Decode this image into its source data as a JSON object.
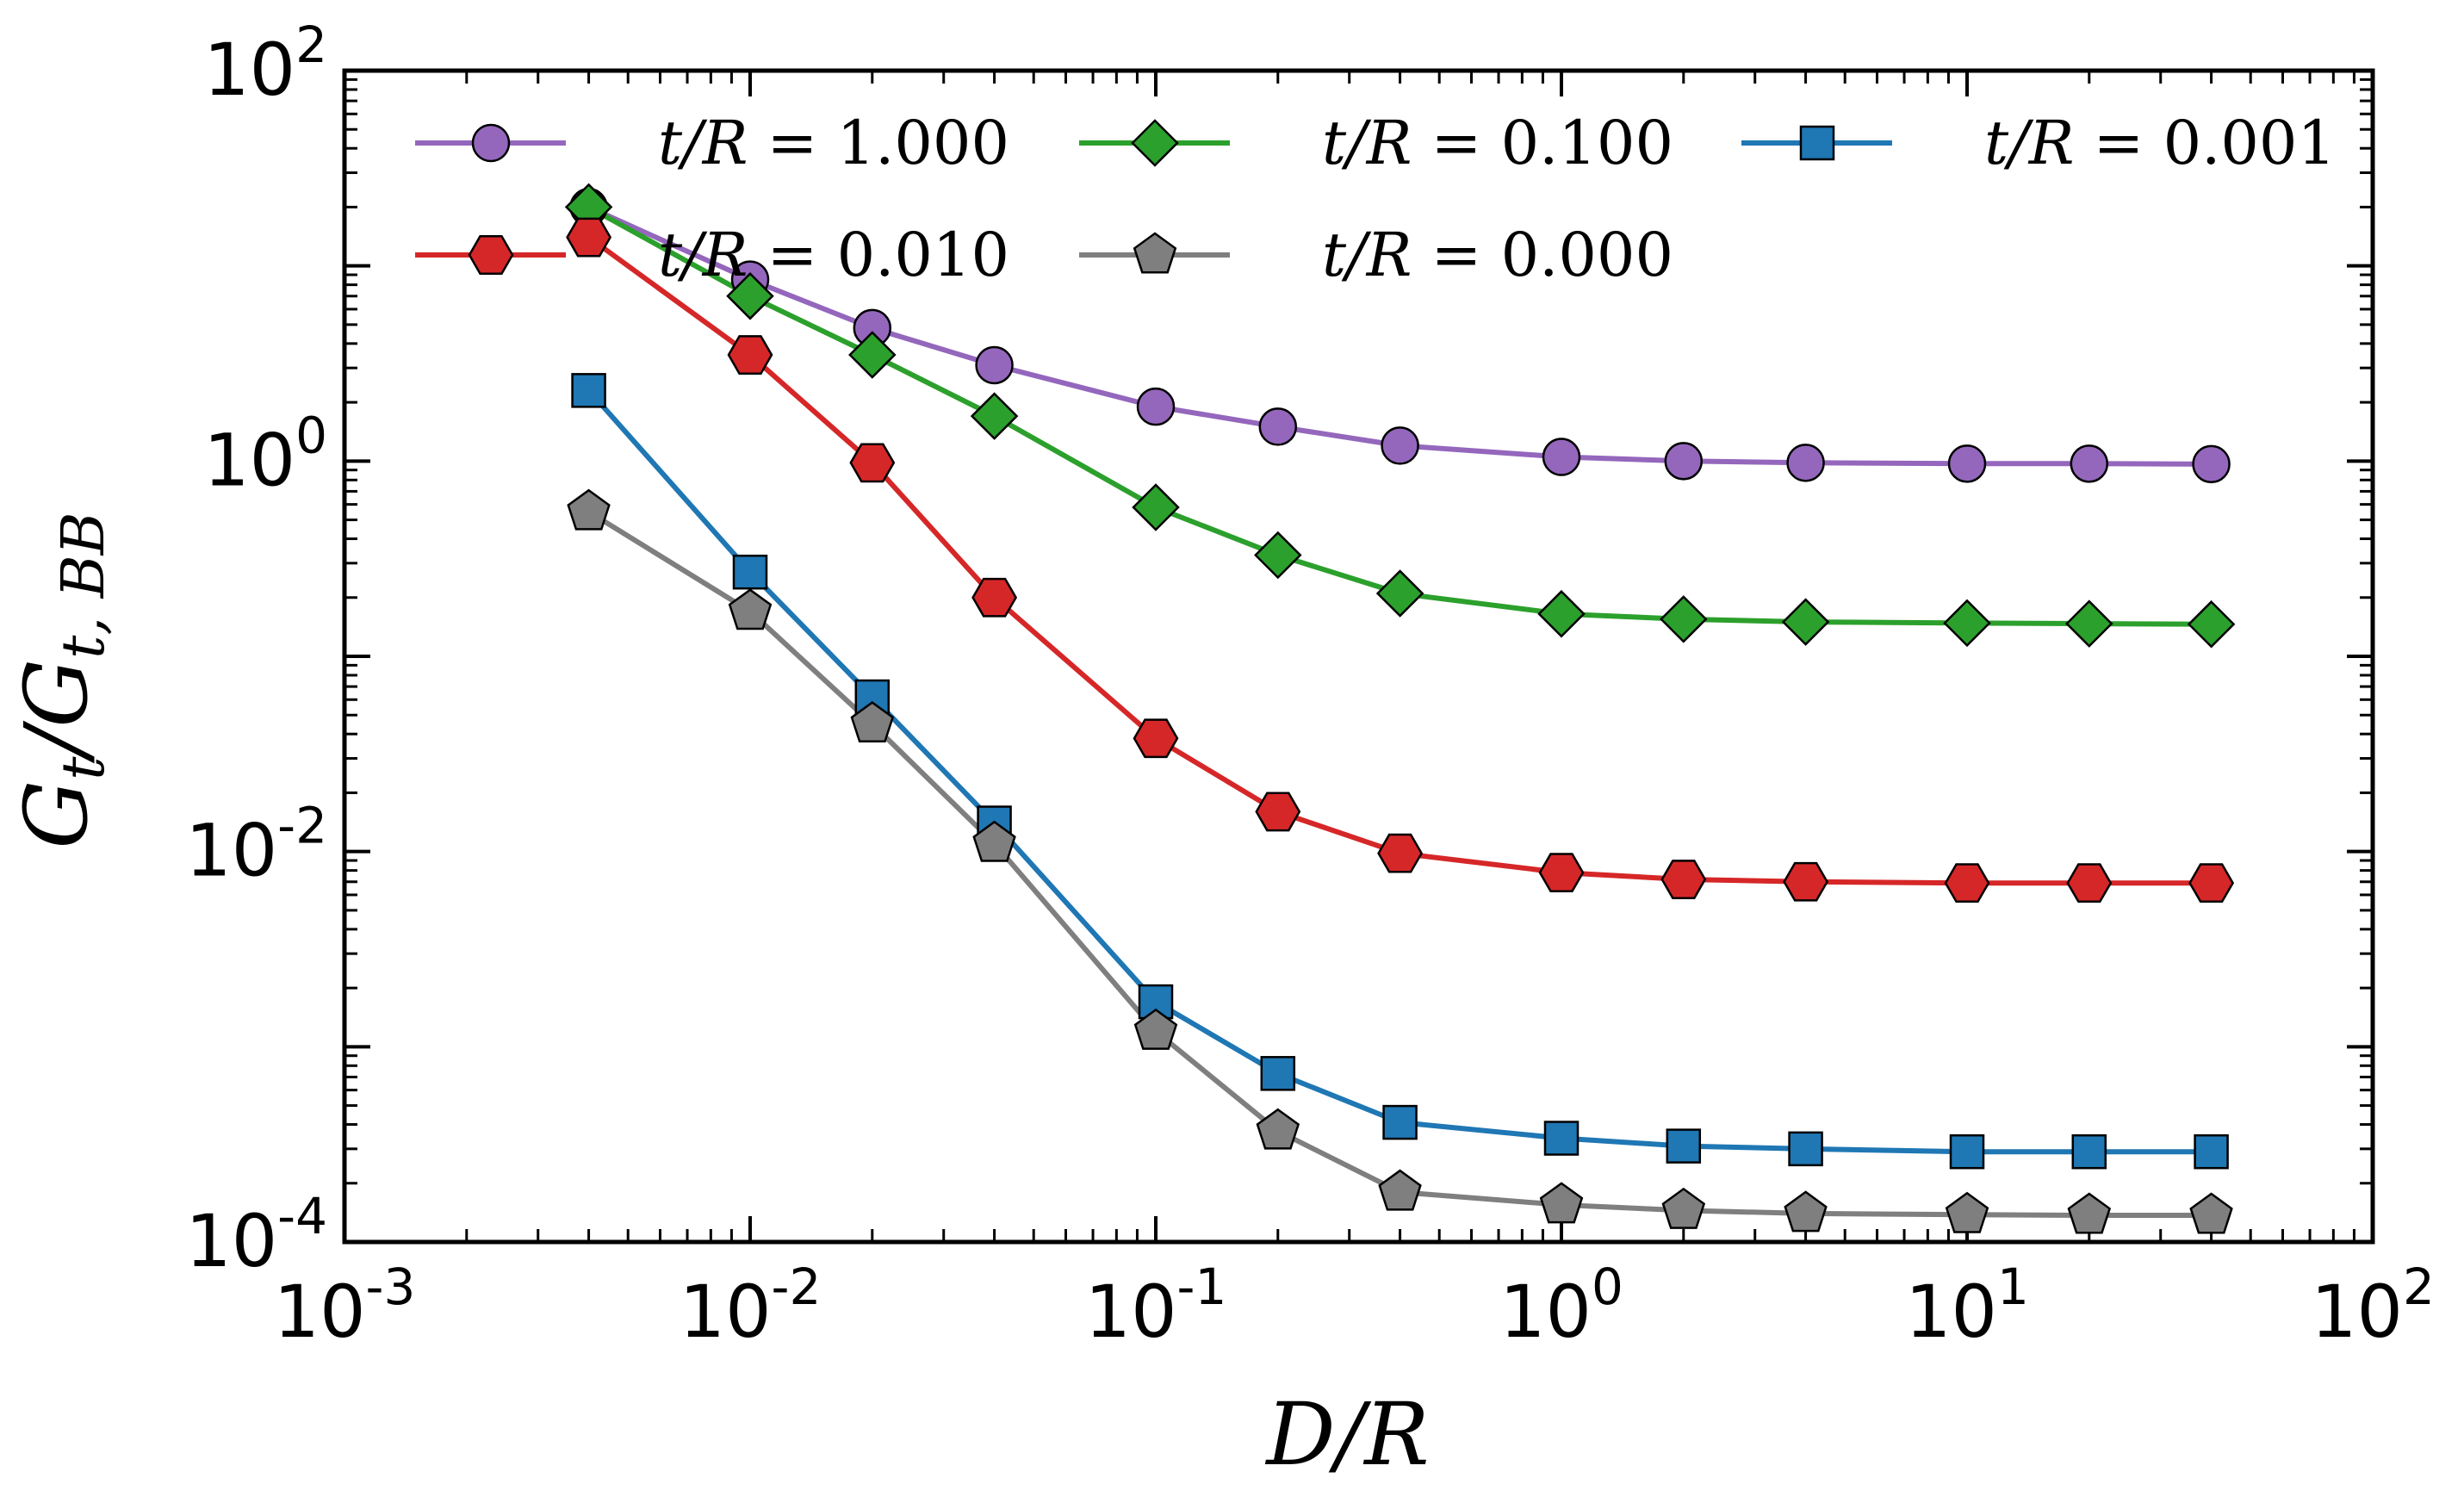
{
  "chart_data": {
    "type": "line",
    "xscale": "log",
    "yscale": "log",
    "xlabel": "D/R",
    "ylabel": "G_t/G_{t,BB}",
    "xlim": [
      0.001,
      100
    ],
    "ylim": [
      0.0001,
      100
    ],
    "x_ticks": [
      {
        "value": 0.001,
        "base": "10",
        "exp": "-3"
      },
      {
        "value": 0.01,
        "base": "10",
        "exp": "-2"
      },
      {
        "value": 0.1,
        "base": "10",
        "exp": "-1"
      },
      {
        "value": 1,
        "base": "10",
        "exp": "0"
      },
      {
        "value": 10,
        "base": "10",
        "exp": "1"
      },
      {
        "value": 100,
        "base": "10",
        "exp": "2"
      }
    ],
    "y_ticks": [
      {
        "value": 0.0001,
        "base": "10",
        "exp": "-4"
      },
      {
        "value": 0.01,
        "base": "10",
        "exp": "-2"
      },
      {
        "value": 1,
        "base": "10",
        "exp": "0"
      },
      {
        "value": 100,
        "base": "10",
        "exp": "2"
      }
    ],
    "legend_position": "top",
    "x": [
      0.004,
      0.01,
      0.02,
      0.04,
      0.1,
      0.2,
      0.4,
      1,
      2,
      4,
      10,
      20,
      40
    ],
    "series": [
      {
        "name": "t/R = 1.000",
        "label_lhs": "t/R",
        "label_val": "1.000",
        "color": "#9467bd",
        "marker": "circle",
        "values": [
          20,
          8.5,
          4.8,
          3.1,
          1.9,
          1.5,
          1.2,
          1.05,
          1.0,
          0.98,
          0.97,
          0.97,
          0.965
        ]
      },
      {
        "name": "t/R = 0.100",
        "label_lhs": "t/R",
        "label_val": "0.100",
        "color": "#2ca02c",
        "marker": "diamond",
        "values": [
          20,
          7,
          3.5,
          1.7,
          0.58,
          0.33,
          0.21,
          0.165,
          0.155,
          0.15,
          0.148,
          0.147,
          0.146
        ]
      },
      {
        "name": "t/R = 0.001",
        "label_lhs": "t/R",
        "label_val": "0.001",
        "color": "#1f77b4",
        "marker": "square",
        "values": [
          2.3,
          0.27,
          0.062,
          0.014,
          0.0017,
          0.00073,
          0.00041,
          0.00034,
          0.00031,
          0.0003,
          0.00029,
          0.00029,
          0.00029
        ]
      },
      {
        "name": "t/R = 0.010",
        "label_lhs": "t/R",
        "label_val": "0.010",
        "color": "#d62728",
        "marker": "hexagon",
        "values": [
          14,
          3.5,
          0.98,
          0.2,
          0.038,
          0.016,
          0.0098,
          0.0078,
          0.0072,
          0.007,
          0.0069,
          0.0069,
          0.0069
        ]
      },
      {
        "name": "t/R = 0.000",
        "label_lhs": "t/R",
        "label_val": "0.000",
        "color": "#7f7f7f",
        "marker": "pentagon",
        "values": [
          0.55,
          0.17,
          0.045,
          0.011,
          0.0012,
          0.00037,
          0.00018,
          0.000155,
          0.000145,
          0.00014,
          0.000138,
          0.000137,
          0.000137
        ]
      }
    ]
  }
}
